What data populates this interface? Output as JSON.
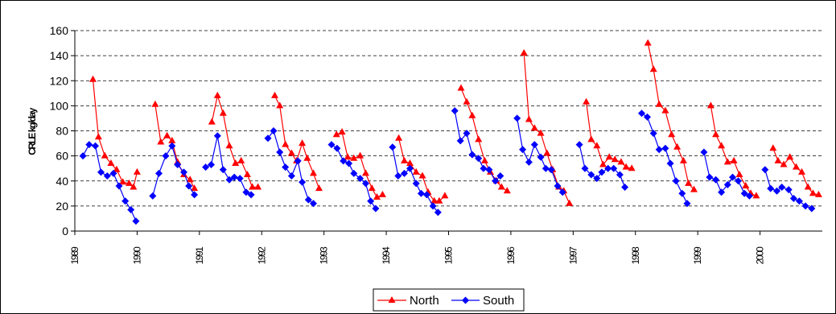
{
  "chart_data": {
    "type": "line",
    "title": "",
    "xlabel": "",
    "ylabel": "CRLE kg/day",
    "ylim": [
      0,
      160
    ],
    "yticks": [
      "0",
      "20",
      "40",
      "60",
      "80",
      "100",
      "120",
      "140",
      "160"
    ],
    "xlim": [
      1989,
      2001
    ],
    "xticks": [
      "1989",
      "1990",
      "1991",
      "1992",
      "1993",
      "1994",
      "1995",
      "1996",
      "1997",
      "1998",
      "1999",
      "2000"
    ],
    "grid": "horizontal dashed",
    "legend_position": "bottom-center",
    "colors": {
      "North": "#ff0000",
      "South": "#0000ff"
    },
    "series": [
      {
        "name": "North",
        "marker": "triangle",
        "segments": [
          [
            [
              1989.29,
              121
            ],
            [
              1989.38,
              75
            ],
            [
              1989.48,
              60
            ],
            [
              1989.58,
              54
            ],
            [
              1989.67,
              49
            ],
            [
              1989.77,
              39
            ],
            [
              1989.87,
              38
            ],
            [
              1989.94,
              35
            ],
            [
              1990.0,
              47
            ]
          ],
          [
            [
              1990.29,
              101
            ],
            [
              1990.38,
              71
            ],
            [
              1990.48,
              76
            ],
            [
              1990.56,
              72
            ],
            [
              1990.65,
              55
            ],
            [
              1990.75,
              45
            ],
            [
              1990.85,
              41
            ],
            [
              1990.92,
              34
            ]
          ],
          [
            [
              1991.2,
              87
            ],
            [
              1991.29,
              108
            ],
            [
              1991.38,
              94
            ],
            [
              1991.48,
              68
            ],
            [
              1991.58,
              54
            ],
            [
              1991.67,
              56
            ],
            [
              1991.77,
              45
            ],
            [
              1991.85,
              35
            ],
            [
              1991.94,
              35
            ]
          ],
          [
            [
              1992.21,
              108
            ],
            [
              1992.29,
              100
            ],
            [
              1992.38,
              69
            ],
            [
              1992.48,
              62
            ],
            [
              1992.56,
              56
            ],
            [
              1992.65,
              70
            ],
            [
              1992.73,
              58
            ],
            [
              1992.83,
              46
            ],
            [
              1992.92,
              34
            ]
          ],
          [
            [
              1993.2,
              77
            ],
            [
              1993.29,
              79
            ],
            [
              1993.38,
              59
            ],
            [
              1993.48,
              58
            ],
            [
              1993.58,
              60
            ],
            [
              1993.67,
              46
            ],
            [
              1993.77,
              34
            ],
            [
              1993.85,
              27
            ],
            [
              1993.94,
              29
            ]
          ],
          [
            [
              1994.2,
              74
            ],
            [
              1994.29,
              56
            ],
            [
              1994.38,
              54
            ],
            [
              1994.48,
              47
            ],
            [
              1994.58,
              44
            ],
            [
              1994.67,
              31
            ],
            [
              1994.77,
              24
            ],
            [
              1994.85,
              24
            ],
            [
              1994.94,
              28
            ]
          ],
          [
            [
              1995.2,
              114
            ],
            [
              1995.29,
              103
            ],
            [
              1995.38,
              92
            ],
            [
              1995.48,
              73
            ],
            [
              1995.58,
              56
            ],
            [
              1995.67,
              47
            ],
            [
              1995.77,
              40
            ],
            [
              1995.85,
              35
            ],
            [
              1995.94,
              32
            ]
          ],
          [
            [
              1996.21,
              142
            ],
            [
              1996.29,
              89
            ],
            [
              1996.38,
              82
            ],
            [
              1996.48,
              78
            ],
            [
              1996.58,
              62
            ],
            [
              1996.67,
              49
            ],
            [
              1996.77,
              35
            ],
            [
              1996.85,
              32
            ],
            [
              1996.94,
              22
            ]
          ],
          [
            [
              1997.21,
              103
            ],
            [
              1997.29,
              73
            ],
            [
              1997.38,
              68
            ],
            [
              1997.48,
              53
            ],
            [
              1997.58,
              59
            ],
            [
              1997.67,
              57
            ],
            [
              1997.77,
              55
            ],
            [
              1997.85,
              51
            ],
            [
              1997.94,
              50
            ]
          ],
          [
            [
              1998.2,
              150
            ],
            [
              1998.29,
              129
            ],
            [
              1998.38,
              101
            ],
            [
              1998.48,
              96
            ],
            [
              1998.58,
              77
            ],
            [
              1998.67,
              67
            ],
            [
              1998.77,
              56
            ],
            [
              1998.85,
              38
            ],
            [
              1998.94,
              33
            ]
          ],
          [
            [
              1999.21,
              100
            ],
            [
              1999.29,
              77
            ],
            [
              1999.38,
              68
            ],
            [
              1999.48,
              55
            ],
            [
              1999.58,
              56
            ],
            [
              1999.67,
              45
            ],
            [
              1999.77,
              36
            ],
            [
              1999.85,
              30
            ],
            [
              1999.94,
              28
            ]
          ],
          [
            [
              2000.21,
              66
            ],
            [
              2000.29,
              56
            ],
            [
              2000.38,
              53
            ],
            [
              2000.48,
              59
            ],
            [
              2000.58,
              51
            ],
            [
              2000.67,
              47
            ],
            [
              2000.77,
              35
            ],
            [
              2000.85,
              30
            ],
            [
              2000.94,
              29
            ]
          ]
        ]
      },
      {
        "name": "South",
        "marker": "diamond",
        "segments": [
          [
            [
              1989.13,
              60
            ],
            [
              1989.23,
              69
            ],
            [
              1989.33,
              68
            ],
            [
              1989.42,
              47
            ],
            [
              1989.52,
              44
            ],
            [
              1989.62,
              46
            ],
            [
              1989.71,
              36
            ],
            [
              1989.81,
              24
            ],
            [
              1989.9,
              17
            ],
            [
              1989.98,
              8
            ]
          ],
          [
            [
              1990.25,
              28
            ],
            [
              1990.35,
              46
            ],
            [
              1990.46,
              60
            ],
            [
              1990.56,
              68
            ],
            [
              1990.65,
              53
            ],
            [
              1990.75,
              47
            ],
            [
              1990.83,
              36
            ],
            [
              1990.92,
              29
            ]
          ],
          [
            [
              1991.1,
              51
            ],
            [
              1991.19,
              53
            ],
            [
              1991.29,
              76
            ],
            [
              1991.38,
              49
            ],
            [
              1991.48,
              41
            ],
            [
              1991.56,
              43
            ],
            [
              1991.65,
              42
            ],
            [
              1991.75,
              31
            ],
            [
              1991.83,
              29
            ]
          ],
          [
            [
              1992.1,
              74
            ],
            [
              1992.19,
              80
            ],
            [
              1992.29,
              63
            ],
            [
              1992.38,
              51
            ],
            [
              1992.48,
              44
            ],
            [
              1992.58,
              56
            ],
            [
              1992.65,
              39
            ],
            [
              1992.75,
              25
            ],
            [
              1992.83,
              22
            ]
          ],
          [
            [
              1993.12,
              69
            ],
            [
              1993.21,
              66
            ],
            [
              1993.31,
              56
            ],
            [
              1993.4,
              54
            ],
            [
              1993.48,
              46
            ],
            [
              1993.58,
              42
            ],
            [
              1993.67,
              38
            ],
            [
              1993.75,
              24
            ],
            [
              1993.83,
              18
            ]
          ],
          [
            [
              1994.1,
              67
            ],
            [
              1994.19,
              44
            ],
            [
              1994.29,
              46
            ],
            [
              1994.38,
              50
            ],
            [
              1994.48,
              38
            ],
            [
              1994.56,
              30
            ],
            [
              1994.65,
              29
            ],
            [
              1994.75,
              20
            ],
            [
              1994.83,
              15
            ]
          ],
          [
            [
              1995.1,
              96
            ],
            [
              1995.19,
              72
            ],
            [
              1995.29,
              78
            ],
            [
              1995.38,
              61
            ],
            [
              1995.48,
              58
            ],
            [
              1995.56,
              50
            ],
            [
              1995.65,
              49
            ],
            [
              1995.75,
              40
            ],
            [
              1995.83,
              44
            ]
          ],
          [
            [
              1996.1,
              90
            ],
            [
              1996.19,
              65
            ],
            [
              1996.29,
              55
            ],
            [
              1996.38,
              69
            ],
            [
              1996.48,
              59
            ],
            [
              1996.56,
              50
            ],
            [
              1996.65,
              49
            ],
            [
              1996.75,
              36
            ],
            [
              1996.83,
              31
            ]
          ],
          [
            [
              1997.1,
              69
            ],
            [
              1997.19,
              50
            ],
            [
              1997.29,
              45
            ],
            [
              1997.38,
              42
            ],
            [
              1997.46,
              47
            ],
            [
              1997.56,
              50
            ],
            [
              1997.65,
              50
            ],
            [
              1997.75,
              45
            ],
            [
              1997.83,
              35
            ]
          ],
          [
            [
              1998.1,
              94
            ],
            [
              1998.19,
              91
            ],
            [
              1998.29,
              78
            ],
            [
              1998.38,
              65
            ],
            [
              1998.48,
              66
            ],
            [
              1998.56,
              54
            ],
            [
              1998.65,
              40
            ],
            [
              1998.75,
              30
            ],
            [
              1998.83,
              22
            ]
          ],
          [
            [
              1999.1,
              63
            ],
            [
              1999.19,
              43
            ],
            [
              1999.29,
              41
            ],
            [
              1999.38,
              31
            ],
            [
              1999.48,
              37
            ],
            [
              1999.56,
              43
            ],
            [
              1999.65,
              40
            ],
            [
              1999.75,
              30
            ],
            [
              1999.83,
              28
            ]
          ],
          [
            [
              2000.08,
              49
            ],
            [
              2000.17,
              34
            ],
            [
              2000.27,
              32
            ],
            [
              2000.35,
              35
            ],
            [
              2000.46,
              33
            ],
            [
              2000.54,
              26
            ],
            [
              2000.63,
              24
            ],
            [
              2000.73,
              20
            ],
            [
              2000.83,
              18
            ]
          ]
        ]
      }
    ]
  }
}
